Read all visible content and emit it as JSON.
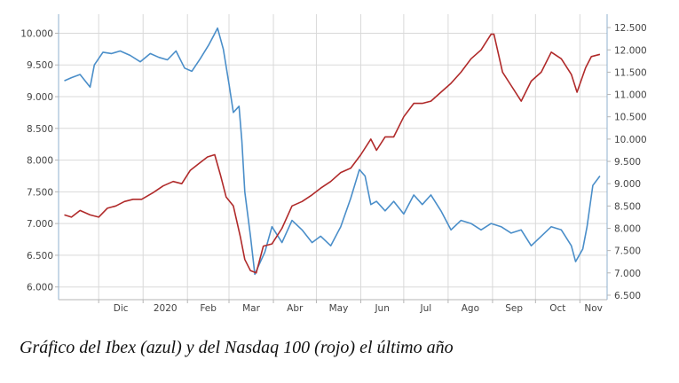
{
  "caption": "Gráfico del Ibex (azul) y del Nasdaq 100 (rojo) el último año",
  "colors": {
    "ibex": "#4a8ec9",
    "nasdaq": "#b02a2a",
    "grid": "#d9d9d9",
    "axis": "#b5b5b5",
    "frame": "#8fb0cf"
  },
  "chart_data": {
    "type": "line",
    "title": "",
    "xlabel": "",
    "ylabel": "",
    "x_ticks": [
      "Dic",
      "2020",
      "Feb",
      "Mar",
      "Abr",
      "May",
      "Jun",
      "Jul",
      "Ago",
      "Sep",
      "Oct",
      "Nov"
    ],
    "y_left_ticks": [
      "10.000",
      "9.500",
      "9.000",
      "8.500",
      "8.000",
      "7.500",
      "7.000",
      "6.500",
      "6.000"
    ],
    "y_right_ticks": [
      "12.500",
      "12.000",
      "11.500",
      "11.000",
      "10.500",
      "10.000",
      "9.500",
      "9.000",
      "8.500",
      "8.000",
      "7.500",
      "7.000",
      "6.500"
    ],
    "y_left_lim": [
      5.8,
      10.3
    ],
    "y_right_lim": [
      6.4,
      12.8
    ],
    "grid": true,
    "series": [
      {
        "name": "Ibex",
        "axis": "left",
        "color": "#4a8ec9",
        "x": [
          "2019-11-07",
          "2019-11-12",
          "2019-11-18",
          "2019-11-25",
          "2019-11-28",
          "2019-12-04",
          "2019-12-10",
          "2019-12-16",
          "2019-12-23",
          "2019-12-30",
          "2020-01-06",
          "2020-01-12",
          "2020-01-18",
          "2020-01-24",
          "2020-01-30",
          "2020-02-04",
          "2020-02-10",
          "2020-02-16",
          "2020-02-19",
          "2020-02-22",
          "2020-02-26",
          "2020-03-01",
          "2020-03-04",
          "2020-03-08",
          "2020-03-10",
          "2020-03-12",
          "2020-03-16",
          "2020-03-19",
          "2020-03-22",
          "2020-03-26",
          "2020-03-31",
          "2020-04-07",
          "2020-04-14",
          "2020-04-21",
          "2020-04-28",
          "2020-05-04",
          "2020-05-11",
          "2020-05-18",
          "2020-05-25",
          "2020-05-31",
          "2020-06-04",
          "2020-06-08",
          "2020-06-12",
          "2020-06-18",
          "2020-06-24",
          "2020-07-01",
          "2020-07-08",
          "2020-07-14",
          "2020-07-20",
          "2020-07-27",
          "2020-08-03",
          "2020-08-10",
          "2020-08-17",
          "2020-08-24",
          "2020-08-31",
          "2020-09-07",
          "2020-09-14",
          "2020-09-21",
          "2020-09-28",
          "2020-10-05",
          "2020-10-12",
          "2020-10-19",
          "2020-10-26",
          "2020-10-29",
          "2020-11-03",
          "2020-11-06",
          "2020-11-10",
          "2020-11-15"
        ],
        "y": [
          9.25,
          9.3,
          9.35,
          9.15,
          9.5,
          9.7,
          9.68,
          9.72,
          9.65,
          9.55,
          9.68,
          9.62,
          9.58,
          9.72,
          9.45,
          9.4,
          9.6,
          9.82,
          9.95,
          10.08,
          9.75,
          9.2,
          8.75,
          8.85,
          8.3,
          7.5,
          6.8,
          6.2,
          6.35,
          6.55,
          6.95,
          6.7,
          7.05,
          6.9,
          6.7,
          6.8,
          6.65,
          6.95,
          7.4,
          7.85,
          7.75,
          7.3,
          7.35,
          7.2,
          7.35,
          7.15,
          7.45,
          7.3,
          7.45,
          7.2,
          6.9,
          7.05,
          7.0,
          6.9,
          7.0,
          6.95,
          6.85,
          6.9,
          6.65,
          6.8,
          6.95,
          6.9,
          6.65,
          6.4,
          6.6,
          6.95,
          7.6,
          7.75
        ]
      },
      {
        "name": "Nasdaq 100",
        "axis": "right",
        "color": "#b02a2a",
        "x": [
          "2019-11-07",
          "2019-11-12",
          "2019-11-18",
          "2019-11-25",
          "2019-12-01",
          "2019-12-07",
          "2019-12-13",
          "2019-12-19",
          "2019-12-25",
          "2019-12-31",
          "2020-01-08",
          "2020-01-15",
          "2020-01-22",
          "2020-01-28",
          "2020-02-03",
          "2020-02-09",
          "2020-02-15",
          "2020-02-20",
          "2020-02-24",
          "2020-02-28",
          "2020-03-04",
          "2020-03-09",
          "2020-03-12",
          "2020-03-16",
          "2020-03-20",
          "2020-03-25",
          "2020-03-31",
          "2020-04-07",
          "2020-04-14",
          "2020-04-21",
          "2020-04-28",
          "2020-05-04",
          "2020-05-11",
          "2020-05-18",
          "2020-05-25",
          "2020-06-01",
          "2020-06-08",
          "2020-06-12",
          "2020-06-18",
          "2020-06-24",
          "2020-07-01",
          "2020-07-08",
          "2020-07-14",
          "2020-07-20",
          "2020-07-27",
          "2020-08-03",
          "2020-08-10",
          "2020-08-17",
          "2020-08-24",
          "2020-08-31",
          "2020-09-02",
          "2020-09-08",
          "2020-09-14",
          "2020-09-21",
          "2020-09-28",
          "2020-10-05",
          "2020-10-12",
          "2020-10-19",
          "2020-10-26",
          "2020-10-30",
          "2020-11-05",
          "2020-11-09",
          "2020-11-15"
        ],
        "y": [
          8.3,
          8.25,
          8.4,
          8.3,
          8.25,
          8.45,
          8.5,
          8.6,
          8.65,
          8.65,
          8.8,
          8.95,
          9.05,
          9.0,
          9.3,
          9.45,
          9.6,
          9.65,
          9.2,
          8.7,
          8.5,
          7.8,
          7.3,
          7.05,
          7.0,
          7.6,
          7.65,
          8.0,
          8.5,
          8.6,
          8.75,
          8.9,
          9.05,
          9.25,
          9.35,
          9.65,
          10.0,
          9.75,
          10.05,
          10.05,
          10.5,
          10.8,
          10.8,
          10.85,
          11.05,
          11.25,
          11.5,
          11.8,
          12.0,
          12.35,
          12.35,
          11.5,
          11.2,
          10.85,
          11.3,
          11.5,
          11.95,
          11.8,
          11.45,
          11.05,
          11.6,
          11.85,
          11.9
        ]
      }
    ]
  }
}
